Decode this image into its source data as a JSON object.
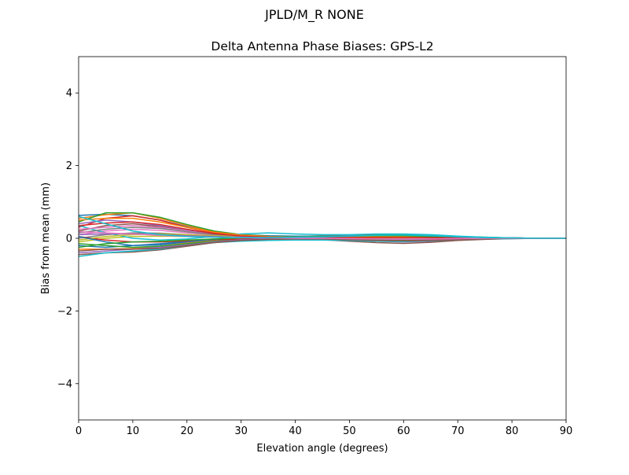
{
  "figure": {
    "suptitle": "JPLD/M_R        NONE"
  },
  "chart_data": {
    "type": "line",
    "title": "Delta Antenna Phase Biases: GPS-L2",
    "xlabel": "Elevation angle (degrees)",
    "ylabel": "Bias from mean (mm)",
    "xlim": [
      0,
      90
    ],
    "ylim": [
      -5,
      5
    ],
    "x_ticks": [
      0,
      10,
      20,
      30,
      40,
      50,
      60,
      70,
      80,
      90
    ],
    "x_tick_labels": [
      "0",
      "10",
      "20",
      "30",
      "40",
      "50",
      "60",
      "70",
      "80",
      "90"
    ],
    "y_ticks": [
      -4,
      -2,
      0,
      2,
      4
    ],
    "y_tick_labels": [
      "−4",
      "−2",
      "0",
      "2",
      "4"
    ],
    "grid": false,
    "legend": "none",
    "x": [
      0,
      5,
      10,
      15,
      20,
      25,
      30,
      35,
      40,
      45,
      50,
      55,
      60,
      65,
      70,
      75,
      80,
      85,
      90
    ],
    "series": [
      {
        "color": "#1f77b4",
        "values": [
          0.63,
          0.66,
          0.62,
          0.5,
          0.32,
          0.18,
          0.1,
          0.07,
          0.06,
          0.06,
          0.06,
          0.07,
          0.08,
          0.06,
          0.04,
          0.02,
          0.01,
          0.0,
          0.0
        ]
      },
      {
        "color": "#ff7f0e",
        "values": [
          0.55,
          0.65,
          0.7,
          0.55,
          0.35,
          0.18,
          0.08,
          0.04,
          0.03,
          0.04,
          0.05,
          0.06,
          0.07,
          0.06,
          0.04,
          0.02,
          0.01,
          0.0,
          0.0
        ]
      },
      {
        "color": "#2ca02c",
        "values": [
          0.45,
          0.7,
          0.7,
          0.58,
          0.38,
          0.2,
          0.1,
          0.06,
          0.05,
          0.07,
          0.09,
          0.1,
          0.1,
          0.07,
          0.05,
          0.03,
          0.01,
          0.0,
          0.0
        ]
      },
      {
        "color": "#d62728",
        "values": [
          0.3,
          0.55,
          0.62,
          0.5,
          0.3,
          0.15,
          0.07,
          0.04,
          0.04,
          0.05,
          0.07,
          0.08,
          0.08,
          0.06,
          0.04,
          0.02,
          0.01,
          0.0,
          0.0
        ]
      },
      {
        "color": "#9467bd",
        "values": [
          0.4,
          0.5,
          0.45,
          0.35,
          0.22,
          0.12,
          0.07,
          0.05,
          0.05,
          0.06,
          0.07,
          0.07,
          0.06,
          0.05,
          0.03,
          0.02,
          0.01,
          0.0,
          0.0
        ]
      },
      {
        "color": "#8c564b",
        "values": [
          0.2,
          0.35,
          0.4,
          0.32,
          0.2,
          0.1,
          0.05,
          0.03,
          0.03,
          0.04,
          0.05,
          0.05,
          0.05,
          0.04,
          0.03,
          0.01,
          0.0,
          0.0,
          0.0
        ]
      },
      {
        "color": "#e377c2",
        "values": [
          0.1,
          0.2,
          0.25,
          0.22,
          0.15,
          0.09,
          0.05,
          0.03,
          0.02,
          0.02,
          0.02,
          0.02,
          0.02,
          0.02,
          0.01,
          0.01,
          0.0,
          0.0,
          0.0
        ]
      },
      {
        "color": "#7f7f7f",
        "values": [
          0.0,
          0.1,
          0.15,
          0.14,
          0.1,
          0.06,
          0.04,
          0.03,
          0.02,
          0.01,
          0.0,
          -0.02,
          -0.03,
          -0.03,
          -0.02,
          -0.01,
          0.0,
          0.0,
          0.0
        ]
      },
      {
        "color": "#bcbd22",
        "values": [
          -0.1,
          0.0,
          0.05,
          0.06,
          0.05,
          0.04,
          0.03,
          0.02,
          0.01,
          0.0,
          -0.02,
          -0.04,
          -0.05,
          -0.04,
          -0.03,
          -0.01,
          0.0,
          0.0,
          0.0
        ]
      },
      {
        "color": "#17becf",
        "values": [
          0.35,
          0.15,
          0.0,
          -0.05,
          -0.02,
          0.05,
          0.12,
          0.15,
          0.12,
          0.1,
          0.1,
          0.12,
          0.12,
          0.1,
          0.06,
          0.03,
          0.01,
          0.0,
          0.0
        ]
      },
      {
        "color": "#1f77b4",
        "values": [
          -0.2,
          -0.25,
          -0.2,
          -0.15,
          -0.08,
          -0.02,
          0.02,
          0.03,
          0.03,
          0.02,
          0.0,
          -0.03,
          -0.05,
          -0.04,
          -0.03,
          -0.01,
          0.0,
          0.0,
          0.0
        ]
      },
      {
        "color": "#ff7f0e",
        "values": [
          -0.3,
          -0.3,
          -0.28,
          -0.22,
          -0.13,
          -0.05,
          0.0,
          0.02,
          0.02,
          0.0,
          -0.03,
          -0.06,
          -0.08,
          -0.07,
          -0.04,
          -0.02,
          0.0,
          0.0,
          0.0
        ]
      },
      {
        "color": "#2ca02c",
        "values": [
          -0.15,
          -0.2,
          -0.25,
          -0.22,
          -0.15,
          -0.08,
          -0.03,
          0.0,
          0.01,
          0.0,
          -0.02,
          -0.04,
          -0.06,
          -0.05,
          -0.03,
          -0.01,
          0.0,
          0.0,
          0.0
        ]
      },
      {
        "color": "#d62728",
        "values": [
          0.05,
          -0.05,
          -0.1,
          -0.1,
          -0.07,
          -0.04,
          -0.02,
          -0.01,
          -0.01,
          -0.02,
          -0.04,
          -0.06,
          -0.07,
          -0.05,
          -0.03,
          -0.01,
          0.0,
          0.0,
          0.0
        ]
      },
      {
        "color": "#9467bd",
        "values": [
          -0.4,
          -0.35,
          -0.3,
          -0.25,
          -0.18,
          -0.1,
          -0.04,
          -0.01,
          0.0,
          -0.02,
          -0.05,
          -0.08,
          -0.1,
          -0.08,
          -0.05,
          -0.02,
          0.0,
          0.0,
          0.0
        ]
      },
      {
        "color": "#8c564b",
        "values": [
          -0.45,
          -0.4,
          -0.38,
          -0.32,
          -0.22,
          -0.12,
          -0.06,
          -0.03,
          -0.02,
          -0.04,
          -0.08,
          -0.12,
          -0.14,
          -0.11,
          -0.06,
          -0.03,
          -0.01,
          0.0,
          0.0
        ]
      },
      {
        "color": "#e377c2",
        "values": [
          0.25,
          0.3,
          0.35,
          0.3,
          0.2,
          0.1,
          0.05,
          0.03,
          0.03,
          0.03,
          0.03,
          0.03,
          0.03,
          0.02,
          0.01,
          0.0,
          0.0,
          0.0,
          0.0
        ]
      },
      {
        "color": "#7f7f7f",
        "values": [
          0.15,
          0.25,
          0.3,
          0.27,
          0.18,
          0.1,
          0.05,
          0.03,
          0.02,
          0.02,
          0.02,
          0.01,
          0.0,
          0.0,
          0.0,
          0.0,
          0.0,
          0.0,
          0.0
        ]
      },
      {
        "color": "#bcbd22",
        "values": [
          -0.05,
          0.05,
          0.1,
          0.12,
          0.1,
          0.07,
          0.05,
          0.04,
          0.03,
          0.02,
          0.01,
          0.0,
          -0.01,
          -0.01,
          0.0,
          0.0,
          0.0,
          0.0,
          0.0
        ]
      },
      {
        "color": "#17becf",
        "values": [
          -0.5,
          -0.4,
          -0.35,
          -0.3,
          -0.2,
          -0.12,
          -0.08,
          -0.06,
          -0.05,
          -0.05,
          -0.06,
          -0.08,
          -0.09,
          -0.07,
          -0.04,
          -0.02,
          -0.01,
          0.0,
          0.0
        ]
      },
      {
        "color": "#1f77b4",
        "values": [
          0.05,
          -0.1,
          -0.2,
          -0.18,
          -0.1,
          -0.03,
          0.03,
          0.06,
          0.06,
          0.05,
          0.04,
          0.04,
          0.04,
          0.03,
          0.02,
          0.01,
          0.0,
          0.0,
          0.0
        ]
      },
      {
        "color": "#ff7f0e",
        "values": [
          0.5,
          0.55,
          0.55,
          0.45,
          0.3,
          0.17,
          0.09,
          0.05,
          0.04,
          0.04,
          0.04,
          0.04,
          0.04,
          0.03,
          0.02,
          0.01,
          0.0,
          0.0,
          0.0
        ]
      },
      {
        "color": "#2ca02c",
        "values": [
          -0.25,
          -0.15,
          -0.1,
          -0.08,
          -0.05,
          -0.02,
          0.01,
          0.03,
          0.04,
          0.05,
          0.06,
          0.07,
          0.07,
          0.05,
          0.03,
          0.01,
          0.0,
          0.0,
          0.0
        ]
      },
      {
        "color": "#d62728",
        "values": [
          0.35,
          0.42,
          0.45,
          0.38,
          0.25,
          0.13,
          0.06,
          0.03,
          0.02,
          0.02,
          0.02,
          0.02,
          0.02,
          0.02,
          0.01,
          0.0,
          0.0,
          0.0,
          0.0
        ]
      },
      {
        "color": "#9467bd",
        "values": [
          0.1,
          0.12,
          0.12,
          0.1,
          0.07,
          0.05,
          0.03,
          0.02,
          0.01,
          0.0,
          -0.01,
          -0.02,
          -0.03,
          -0.02,
          -0.01,
          0.0,
          0.0,
          0.0,
          0.0
        ]
      },
      {
        "color": "#8c564b",
        "values": [
          -0.35,
          -0.3,
          -0.3,
          -0.28,
          -0.2,
          -0.12,
          -0.06,
          -0.03,
          -0.02,
          -0.02,
          -0.04,
          -0.06,
          -0.07,
          -0.06,
          -0.04,
          -0.02,
          0.0,
          0.0,
          0.0
        ]
      },
      {
        "color": "#e377c2",
        "values": [
          0.18,
          0.15,
          0.12,
          0.08,
          0.05,
          0.03,
          0.02,
          0.01,
          0.0,
          0.0,
          -0.01,
          -0.02,
          -0.02,
          -0.02,
          -0.01,
          0.0,
          0.0,
          0.0,
          0.0
        ]
      },
      {
        "color": "#17becf",
        "values": [
          0.6,
          0.4,
          0.2,
          0.1,
          0.05,
          0.03,
          0.02,
          0.02,
          0.03,
          0.04,
          0.06,
          0.08,
          0.09,
          0.07,
          0.04,
          0.02,
          0.01,
          0.0,
          0.0
        ]
      }
    ]
  }
}
